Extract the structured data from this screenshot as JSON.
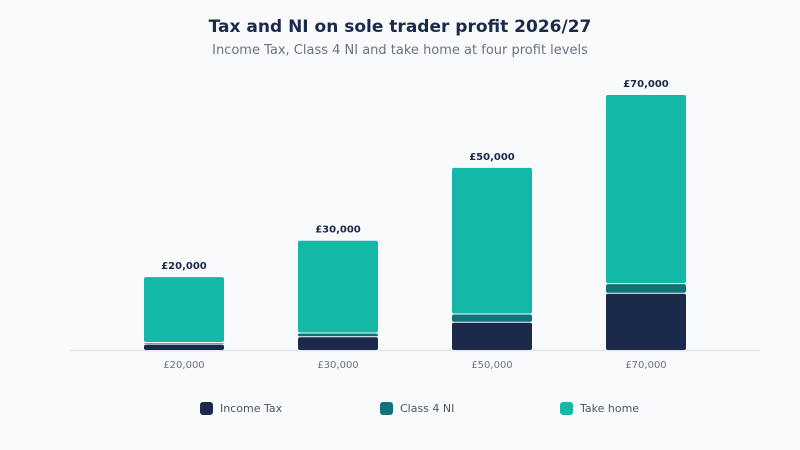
{
  "chart_data": {
    "type": "bar",
    "stacked": true,
    "title": "Tax and NI on sole trader profit 2026/27",
    "subtitle": "Income Tax, Class 4 NI and take home at four profit levels",
    "categories": [
      "£20,000",
      "£30,000",
      "£50,000",
      "£70,000"
    ],
    "totals_labels": [
      "£20,000",
      "£30,000",
      "£50,000",
      "£70,000"
    ],
    "series": [
      {
        "name": "Income Tax",
        "color": "#1b2a4a",
        "values": [
          1486,
          3486,
          7486,
          15432
        ]
      },
      {
        "name": "Class 4 NI",
        "color": "#0f7377",
        "values": [
          446,
          1046,
          2246,
          2646
        ]
      },
      {
        "name": "Take home",
        "color": "#14b8a6",
        "values": [
          18068,
          25468,
          40268,
          51922
        ]
      }
    ],
    "ylim": [
      0,
      70000
    ],
    "grid": false,
    "legend_position": "bottom"
  }
}
